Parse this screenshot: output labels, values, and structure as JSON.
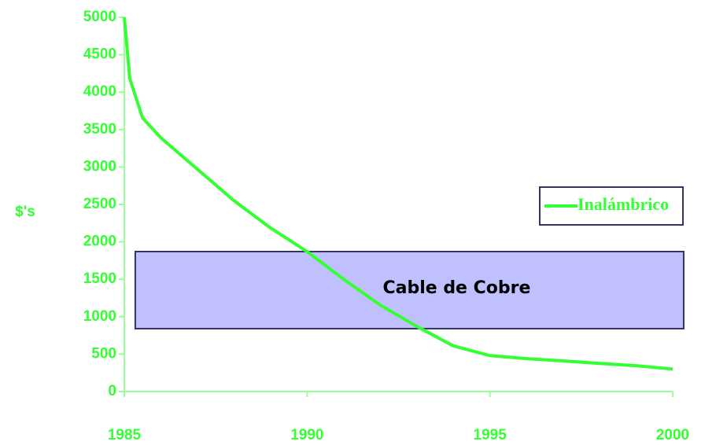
{
  "chart_data": {
    "type": "line",
    "ylabel": "$'s",
    "x": [
      1985,
      1985.15,
      1985.5,
      1986,
      1987,
      1988,
      1989,
      1990,
      1991,
      1992,
      1993,
      1994,
      1995,
      1996,
      1997,
      1998,
      1999,
      2000
    ],
    "series": [
      {
        "name": "Inalámbrico",
        "color": "#33ff33",
        "values": [
          5000,
          4180,
          3655,
          3390,
          2970,
          2550,
          2185,
          1870,
          1500,
          1155,
          870,
          610,
          480,
          440,
          410,
          375,
          345,
          300
        ]
      }
    ],
    "xlim": [
      1985,
      2000
    ],
    "xticks": [
      1985,
      1990,
      1995,
      2000
    ],
    "ylim": [
      0,
      5000
    ],
    "yticks": [
      0,
      500,
      1000,
      1500,
      2000,
      2500,
      3000,
      3500,
      4000,
      4500,
      5000
    ],
    "band": {
      "label": "Cable de Cobre",
      "x": [
        1985.3,
        2000.3
      ],
      "y": [
        840,
        1870
      ],
      "color": "#c0c0ff"
    },
    "legend": "right"
  }
}
